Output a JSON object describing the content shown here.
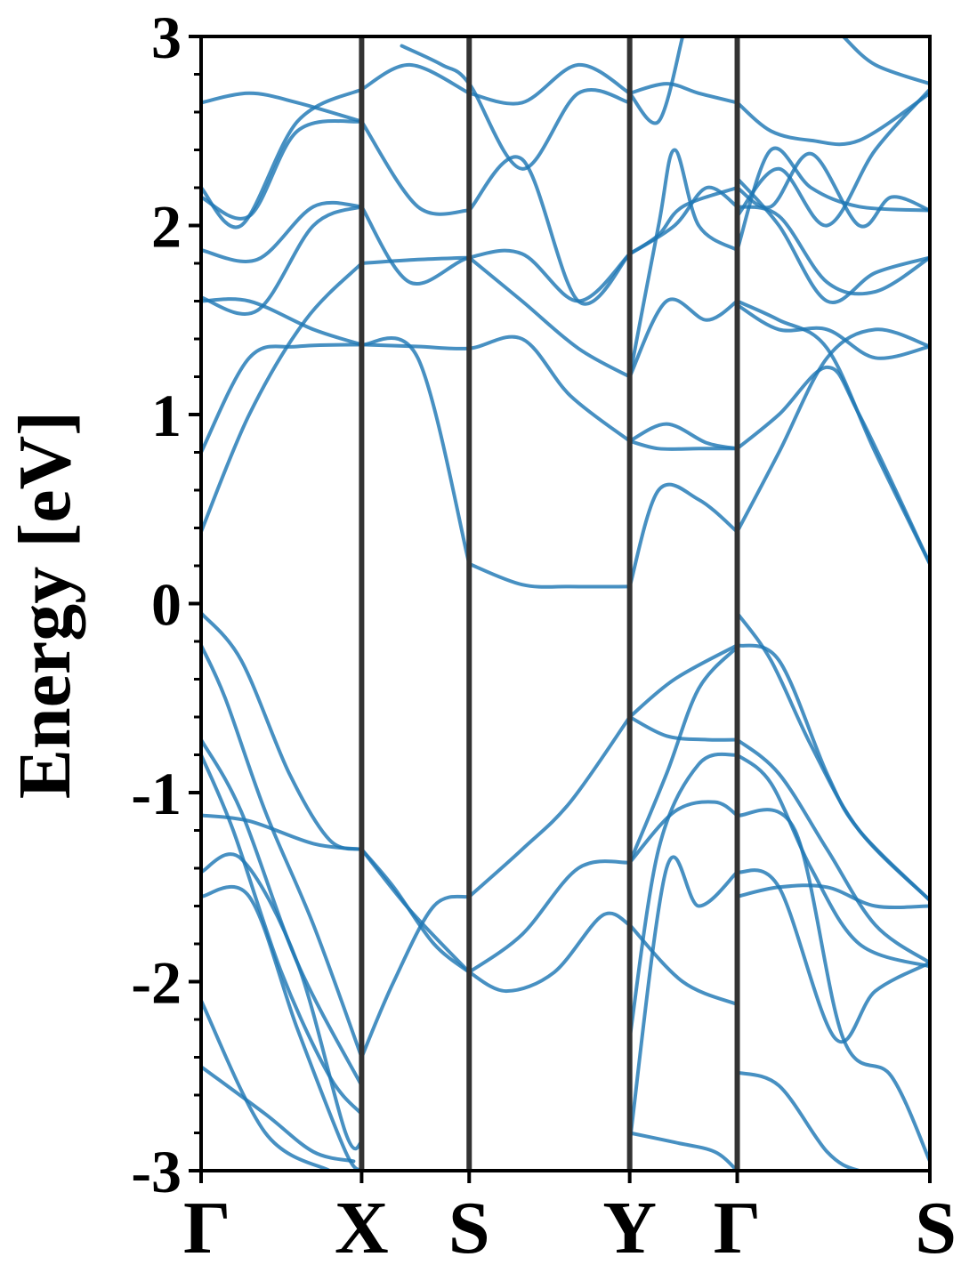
{
  "chart_data": {
    "type": "line",
    "title": "",
    "ylabel": "Energy [eV]",
    "xlabel": "",
    "ylim": [
      -3,
      3
    ],
    "yticks": [
      "-3",
      "-2",
      "-1",
      "0",
      "1",
      "2",
      "3"
    ],
    "ytick_values": [
      -3,
      -2,
      -1,
      0,
      1,
      2,
      3
    ],
    "kpath": [
      {
        "label": "Γ",
        "pos": 0
      },
      {
        "label": "X",
        "pos": 1.0
      },
      {
        "label": "S",
        "pos": 1.67
      },
      {
        "label": "Y",
        "pos": 2.67
      },
      {
        "label": "Γ",
        "pos": 3.34
      },
      {
        "label": "S",
        "pos": 4.54
      }
    ],
    "line_color": "#1f77b4",
    "divider_color": "#333333",
    "series": [
      {
        "x": [
          0,
          0.25,
          0.55,
          0.8,
          1.0
        ],
        "y": [
          -0.05,
          -0.3,
          -0.9,
          -1.25,
          -1.3
        ]
      },
      {
        "x": [
          1.0,
          1.2,
          1.45,
          1.67
        ],
        "y": [
          -1.3,
          -1.5,
          -1.8,
          -1.95
        ]
      },
      {
        "x": [
          1.67,
          2.0,
          2.35,
          2.67
        ],
        "y": [
          -1.95,
          -1.75,
          -1.4,
          -1.37
        ]
      },
      {
        "x": [
          2.67,
          2.9,
          3.1,
          3.34
        ],
        "y": [
          -1.37,
          -0.9,
          -0.45,
          -0.23
        ]
      },
      {
        "x": [
          0,
          0.15,
          0.4,
          0.7,
          1.0
        ],
        "y": [
          -0.22,
          -0.5,
          -1.1,
          -1.7,
          -2.4
        ]
      },
      {
        "x": [
          1.0,
          1.2,
          1.45,
          1.67
        ],
        "y": [
          -2.4,
          -2.0,
          -1.6,
          -1.55
        ]
      },
      {
        "x": [
          1.67,
          2.0,
          2.3,
          2.67
        ],
        "y": [
          -1.55,
          -1.3,
          -1.05,
          -0.6
        ]
      },
      {
        "x": [
          2.67,
          2.95,
          3.34
        ],
        "y": [
          -0.6,
          -0.4,
          -0.22
        ]
      },
      {
        "x": [
          0,
          0.3,
          0.7,
          1.0
        ],
        "y": [
          -1.12,
          -1.15,
          -1.27,
          -1.3
        ]
      },
      {
        "x": [
          1.0,
          1.3,
          1.67
        ],
        "y": [
          -1.3,
          -1.62,
          -1.95
        ]
      },
      {
        "x": [
          1.67,
          1.9,
          2.2,
          2.5,
          2.67
        ],
        "y": [
          -1.95,
          -2.05,
          -1.95,
          -1.65,
          -1.7
        ]
      },
      {
        "x": [
          2.67,
          3.0,
          3.34
        ],
        "y": [
          -1.7,
          -2.0,
          -2.12
        ]
      },
      {
        "x": [
          0,
          0.25,
          0.6,
          1.0
        ],
        "y": [
          -0.72,
          -1.1,
          -1.9,
          -2.55
        ]
      },
      {
        "x": [
          0,
          0.2,
          0.5,
          0.8,
          1.0
        ],
        "y": [
          -0.8,
          -1.2,
          -1.95,
          -2.5,
          -2.7
        ]
      },
      {
        "x": [
          0,
          0.25,
          0.6,
          0.9,
          1.0
        ],
        "y": [
          -1.42,
          -1.35,
          -1.9,
          -2.8,
          -2.85
        ]
      },
      {
        "x": [
          0,
          0.3,
          0.6,
          0.9,
          1.0
        ],
        "y": [
          -1.55,
          -1.55,
          -2.25,
          -2.9,
          -3.0
        ]
      },
      {
        "x": [
          0,
          0.4,
          0.8
        ],
        "y": [
          -2.1,
          -2.8,
          -3.0
        ]
      },
      {
        "x": [
          0,
          0.4,
          0.7,
          0.95
        ],
        "y": [
          -2.45,
          -2.7,
          -2.9,
          -2.95
        ]
      },
      {
        "x": [
          3.34,
          3.55,
          3.8,
          4.1,
          4.54
        ],
        "y": [
          -0.05,
          -0.3,
          -0.75,
          -1.2,
          -1.57
        ]
      },
      {
        "x": [
          3.34,
          3.6,
          3.9,
          4.2,
          4.54
        ],
        "y": [
          -0.72,
          -0.9,
          -1.3,
          -1.7,
          -1.9
        ]
      },
      {
        "x": [
          3.34,
          3.55,
          3.8,
          4.1,
          4.54
        ],
        "y": [
          -0.8,
          -0.95,
          -1.4,
          -1.8,
          -1.92
        ]
      },
      {
        "x": [
          3.34,
          3.7,
          4.0,
          4.3,
          4.54
        ],
        "y": [
          -1.12,
          -1.2,
          -2.3,
          -2.5,
          -2.95
        ]
      },
      {
        "x": [
          3.34,
          3.6,
          3.95,
          4.2,
          4.54
        ],
        "y": [
          -1.42,
          -1.5,
          -2.3,
          -2.05,
          -1.9
        ]
      },
      {
        "x": [
          3.34,
          3.6,
          3.9,
          4.2,
          4.54
        ],
        "y": [
          -1.55,
          -1.5,
          -1.5,
          -1.6,
          -1.6
        ]
      },
      {
        "x": [
          3.34,
          3.6,
          3.9,
          4.1,
          4.3
        ],
        "y": [
          -2.48,
          -2.55,
          -2.9,
          -3.0,
          -3.0
        ]
      },
      {
        "x": [
          2.67,
          2.9,
          3.15,
          3.34
        ],
        "y": [
          -0.6,
          -0.7,
          -0.72,
          -0.72
        ]
      },
      {
        "x": [
          2.67,
          2.85,
          3.1,
          3.34
        ],
        "y": [
          -2.3,
          -1.3,
          -0.85,
          -0.8
        ]
      },
      {
        "x": [
          2.67,
          2.95,
          3.2,
          3.34
        ],
        "y": [
          -1.37,
          -1.1,
          -1.05,
          -1.12
        ]
      },
      {
        "x": [
          2.67,
          2.95,
          3.2,
          3.34
        ],
        "y": [
          -2.8,
          -2.85,
          -2.9,
          -3.0
        ]
      },
      {
        "x": [
          2.67,
          2.9,
          3.1,
          3.34
        ],
        "y": [
          -2.85,
          -1.4,
          -1.6,
          -1.42
        ]
      },
      {
        "x": [
          0,
          0.3,
          0.6,
          1.0
        ],
        "y": [
          0.8,
          1.3,
          1.36,
          1.37
        ]
      },
      {
        "x": [
          0,
          0.3,
          0.65,
          1.0
        ],
        "y": [
          0.38,
          1.0,
          1.5,
          1.8
        ]
      },
      {
        "x": [
          1.0,
          1.35,
          1.67
        ],
        "y": [
          1.8,
          1.82,
          1.83
        ]
      },
      {
        "x": [
          1.67,
          2.0,
          2.35,
          2.67
        ],
        "y": [
          1.83,
          1.6,
          1.35,
          1.2
        ]
      },
      {
        "x": [
          1.0,
          1.35,
          1.67
        ],
        "y": [
          1.37,
          1.3,
          0.21
        ]
      },
      {
        "x": [
          1.67,
          2.0,
          2.3,
          2.67
        ],
        "y": [
          0.21,
          0.1,
          0.09,
          0.09
        ]
      },
      {
        "x": [
          1.0,
          1.35,
          1.67,
          2.0,
          2.3,
          2.67
        ],
        "y": [
          1.37,
          1.36,
          1.35,
          1.4,
          1.1,
          0.86
        ]
      },
      {
        "x": [
          1.0,
          1.3,
          1.67,
          2.0,
          2.35,
          2.67
        ],
        "y": [
          2.1,
          1.7,
          1.83,
          1.85,
          1.6,
          1.85
        ]
      },
      {
        "x": [
          0,
          0.3,
          0.7,
          1.0
        ],
        "y": [
          1.6,
          1.6,
          1.45,
          1.37
        ]
      },
      {
        "x": [
          0,
          0.35,
          0.7,
          1.0
        ],
        "y": [
          1.62,
          1.55,
          2.0,
          2.1
        ]
      },
      {
        "x": [
          0,
          0.35,
          0.7,
          1.0
        ],
        "y": [
          1.87,
          1.82,
          2.1,
          2.1
        ]
      },
      {
        "x": [
          0,
          0.25,
          0.6,
          1.0
        ],
        "y": [
          2.2,
          2.0,
          2.55,
          2.72
        ]
      },
      {
        "x": [
          0,
          0.3,
          0.6,
          1.0
        ],
        "y": [
          2.65,
          2.7,
          2.65,
          2.55
        ]
      },
      {
        "x": [
          0,
          0.3,
          0.6,
          1.0
        ],
        "y": [
          2.15,
          2.05,
          2.5,
          2.55
        ]
      },
      {
        "x": [
          1.0,
          1.35,
          1.67
        ],
        "y": [
          2.55,
          2.1,
          2.08
        ]
      },
      {
        "x": [
          1.67,
          2.0,
          2.35,
          2.67
        ],
        "y": [
          2.08,
          2.35,
          1.6,
          1.85
        ]
      },
      {
        "x": [
          1.0,
          1.3,
          1.67
        ],
        "y": [
          2.72,
          2.85,
          2.7
        ]
      },
      {
        "x": [
          1.67,
          2.0,
          2.35,
          2.67
        ],
        "y": [
          2.7,
          2.65,
          2.85,
          2.7
        ]
      },
      {
        "x": [
          1.25,
          1.5,
          1.67,
          2.0,
          2.35,
          2.67
        ],
        "y": [
          2.95,
          2.85,
          2.75,
          2.3,
          2.7,
          2.65
        ]
      },
      {
        "x": [
          2.67,
          2.9,
          3.15,
          3.34
        ],
        "y": [
          0.86,
          0.95,
          0.85,
          0.82
        ]
      },
      {
        "x": [
          2.67,
          2.85,
          3.1,
          3.34
        ],
        "y": [
          0.09,
          0.6,
          0.55,
          0.38
        ]
      },
      {
        "x": [
          2.67,
          2.85,
          3.1,
          3.34
        ],
        "y": [
          0.86,
          0.82,
          0.82,
          0.82
        ]
      },
      {
        "x": [
          2.67,
          2.9,
          3.15,
          3.34
        ],
        "y": [
          1.2,
          1.6,
          1.5,
          1.6
        ]
      },
      {
        "x": [
          2.67,
          2.85,
          3.0,
          3.34
        ],
        "y": [
          1.85,
          1.95,
          2.1,
          2.2
        ]
      },
      {
        "x": [
          2.67,
          2.85,
          2.95,
          3.1,
          3.34
        ],
        "y": [
          1.2,
          2.0,
          2.4,
          2.0,
          1.87
        ]
      },
      {
        "x": [
          2.67,
          2.9,
          3.1,
          3.34
        ],
        "y": [
          2.7,
          2.75,
          2.7,
          2.65
        ]
      },
      {
        "x": [
          2.67,
          2.85,
          3.0
        ],
        "y": [
          2.7,
          2.55,
          3.0
        ]
      },
      {
        "x": [
          2.67,
          2.95,
          3.15,
          3.34
        ],
        "y": [
          1.85,
          2.0,
          2.2,
          2.1
        ]
      },
      {
        "x": [
          3.34,
          3.6,
          3.9,
          4.2,
          4.54
        ],
        "y": [
          0.38,
          0.8,
          1.3,
          1.45,
          1.36
        ]
      },
      {
        "x": [
          3.34,
          3.6,
          3.9,
          4.1,
          4.54
        ],
        "y": [
          0.82,
          1.0,
          1.25,
          1.0,
          0.21
        ]
      },
      {
        "x": [
          3.34,
          3.6,
          3.9,
          4.2,
          4.54
        ],
        "y": [
          1.6,
          1.5,
          1.35,
          0.8,
          0.21
        ]
      },
      {
        "x": [
          3.34,
          3.6,
          3.9,
          4.2,
          4.54
        ],
        "y": [
          1.58,
          1.45,
          1.45,
          1.3,
          1.36
        ]
      },
      {
        "x": [
          3.34,
          3.6,
          3.9,
          4.2,
          4.54
        ],
        "y": [
          2.1,
          2.05,
          1.7,
          1.65,
          1.83
        ]
      },
      {
        "x": [
          3.34,
          3.6,
          3.9,
          4.2,
          4.54
        ],
        "y": [
          2.25,
          2.0,
          1.6,
          1.75,
          1.83
        ]
      },
      {
        "x": [
          3.34,
          3.55,
          3.8,
          4.1,
          4.54
        ],
        "y": [
          1.87,
          2.4,
          2.2,
          2.1,
          2.08
        ]
      },
      {
        "x": [
          3.34,
          3.55,
          3.8,
          4.1,
          4.3,
          4.54
        ],
        "y": [
          2.2,
          2.1,
          2.38,
          2.0,
          2.15,
          2.08
        ]
      },
      {
        "x": [
          3.34,
          3.55,
          3.8,
          4.1,
          4.54
        ],
        "y": [
          2.65,
          2.5,
          2.45,
          2.45,
          2.7
        ]
      },
      {
        "x": [
          3.34,
          3.6,
          3.9,
          4.2,
          4.54
        ],
        "y": [
          2.05,
          2.3,
          2.0,
          2.4,
          2.72
        ]
      },
      {
        "x": [
          4.0,
          4.2,
          4.54
        ],
        "y": [
          3.0,
          2.85,
          2.75
        ]
      },
      {
        "x": [
          3.34,
          3.6,
          3.9,
          4.1,
          4.54
        ],
        "y": [
          -0.22,
          -0.3,
          -0.9,
          -1.2,
          -1.57
        ]
      }
    ]
  }
}
